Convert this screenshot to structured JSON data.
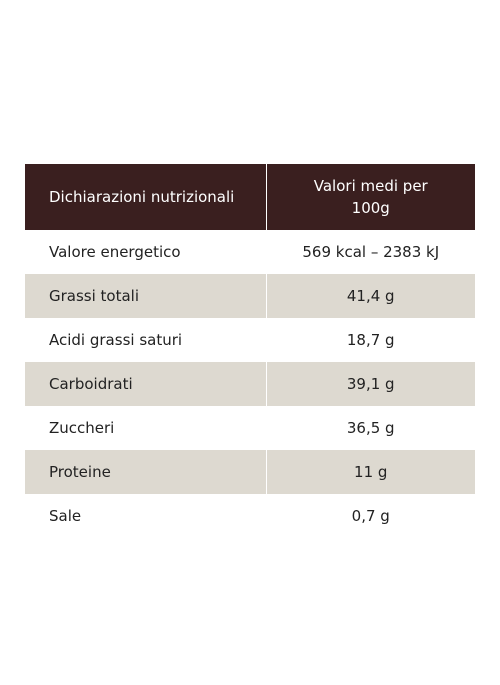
{
  "table": {
    "header": {
      "col1": "Dichiarazioni nutrizionali",
      "col2": "Valori medi per 100g"
    },
    "rows": [
      {
        "name": "Valore energetico",
        "value": "569 kcal – 2383 kJ"
      },
      {
        "name": "Grassi totali",
        "value": "41,4 g"
      },
      {
        "name": "Acidi grassi saturi",
        "value": "18,7 g"
      },
      {
        "name": "Carboidrati",
        "value": "39,1 g"
      },
      {
        "name": "Zuccheri",
        "value": "36,5 g"
      },
      {
        "name": "Proteine",
        "value": "11 g"
      },
      {
        "name": "Sale",
        "value": "0,7 g"
      }
    ]
  },
  "colors": {
    "header_background": "#3a1f1f",
    "stripe_background": "#ddd9d0",
    "text": "#222222"
  }
}
